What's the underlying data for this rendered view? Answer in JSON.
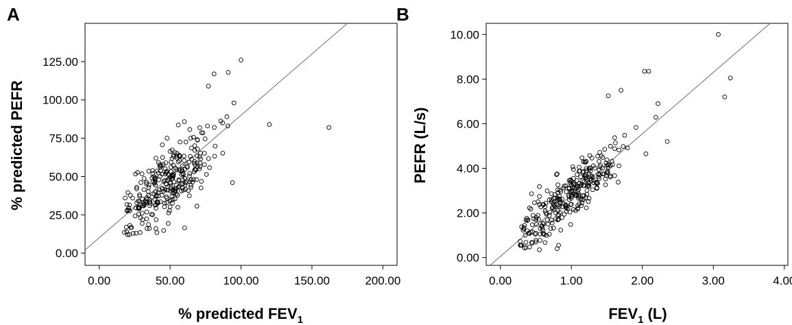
{
  "chart_data": [
    {
      "type": "scatter",
      "panel_label": "A",
      "title": "",
      "xlabel": "% predicted FEV",
      "xlabel_sub": "1",
      "ylabel": "% predicted PEFR",
      "xlim": [
        -10,
        210
      ],
      "ylim": [
        -8,
        150
      ],
      "xticks": [
        0,
        50,
        100,
        150,
        200
      ],
      "yticks": [
        0,
        25,
        50,
        75,
        100,
        125
      ],
      "xtick_labels": [
        "0.00",
        "50.00",
        "100.00",
        "150.00",
        "200.00"
      ],
      "ytick_labels": [
        "0.00",
        "25.00",
        "50.00",
        "75.00",
        "100.00",
        "125.00"
      ],
      "fit_line": {
        "intercept": 10.0,
        "slope": 0.8
      },
      "grid": false,
      "points": []
    },
    {
      "type": "scatter",
      "panel_label": "B",
      "title": "",
      "xlabel": "FEV",
      "xlabel_sub": "1",
      "xlabel_suffix": " (L)",
      "ylabel": "PEFR (L/s)",
      "xlim": [
        -0.2,
        4.05
      ],
      "ylim": [
        -0.35,
        10.5
      ],
      "xticks": [
        0,
        1,
        2,
        3,
        4
      ],
      "yticks": [
        0,
        2,
        4,
        6,
        8,
        10
      ],
      "xtick_labels": [
        "0.00",
        "1.00",
        "2.00",
        "3.00",
        "4.00"
      ],
      "ytick_labels": [
        "0.00",
        "2.00",
        "4.00",
        "6.00",
        "8.00",
        "10.00"
      ],
      "fit_line": {
        "intercept": 0.05,
        "slope": 2.75
      },
      "grid": false,
      "points": []
    }
  ]
}
